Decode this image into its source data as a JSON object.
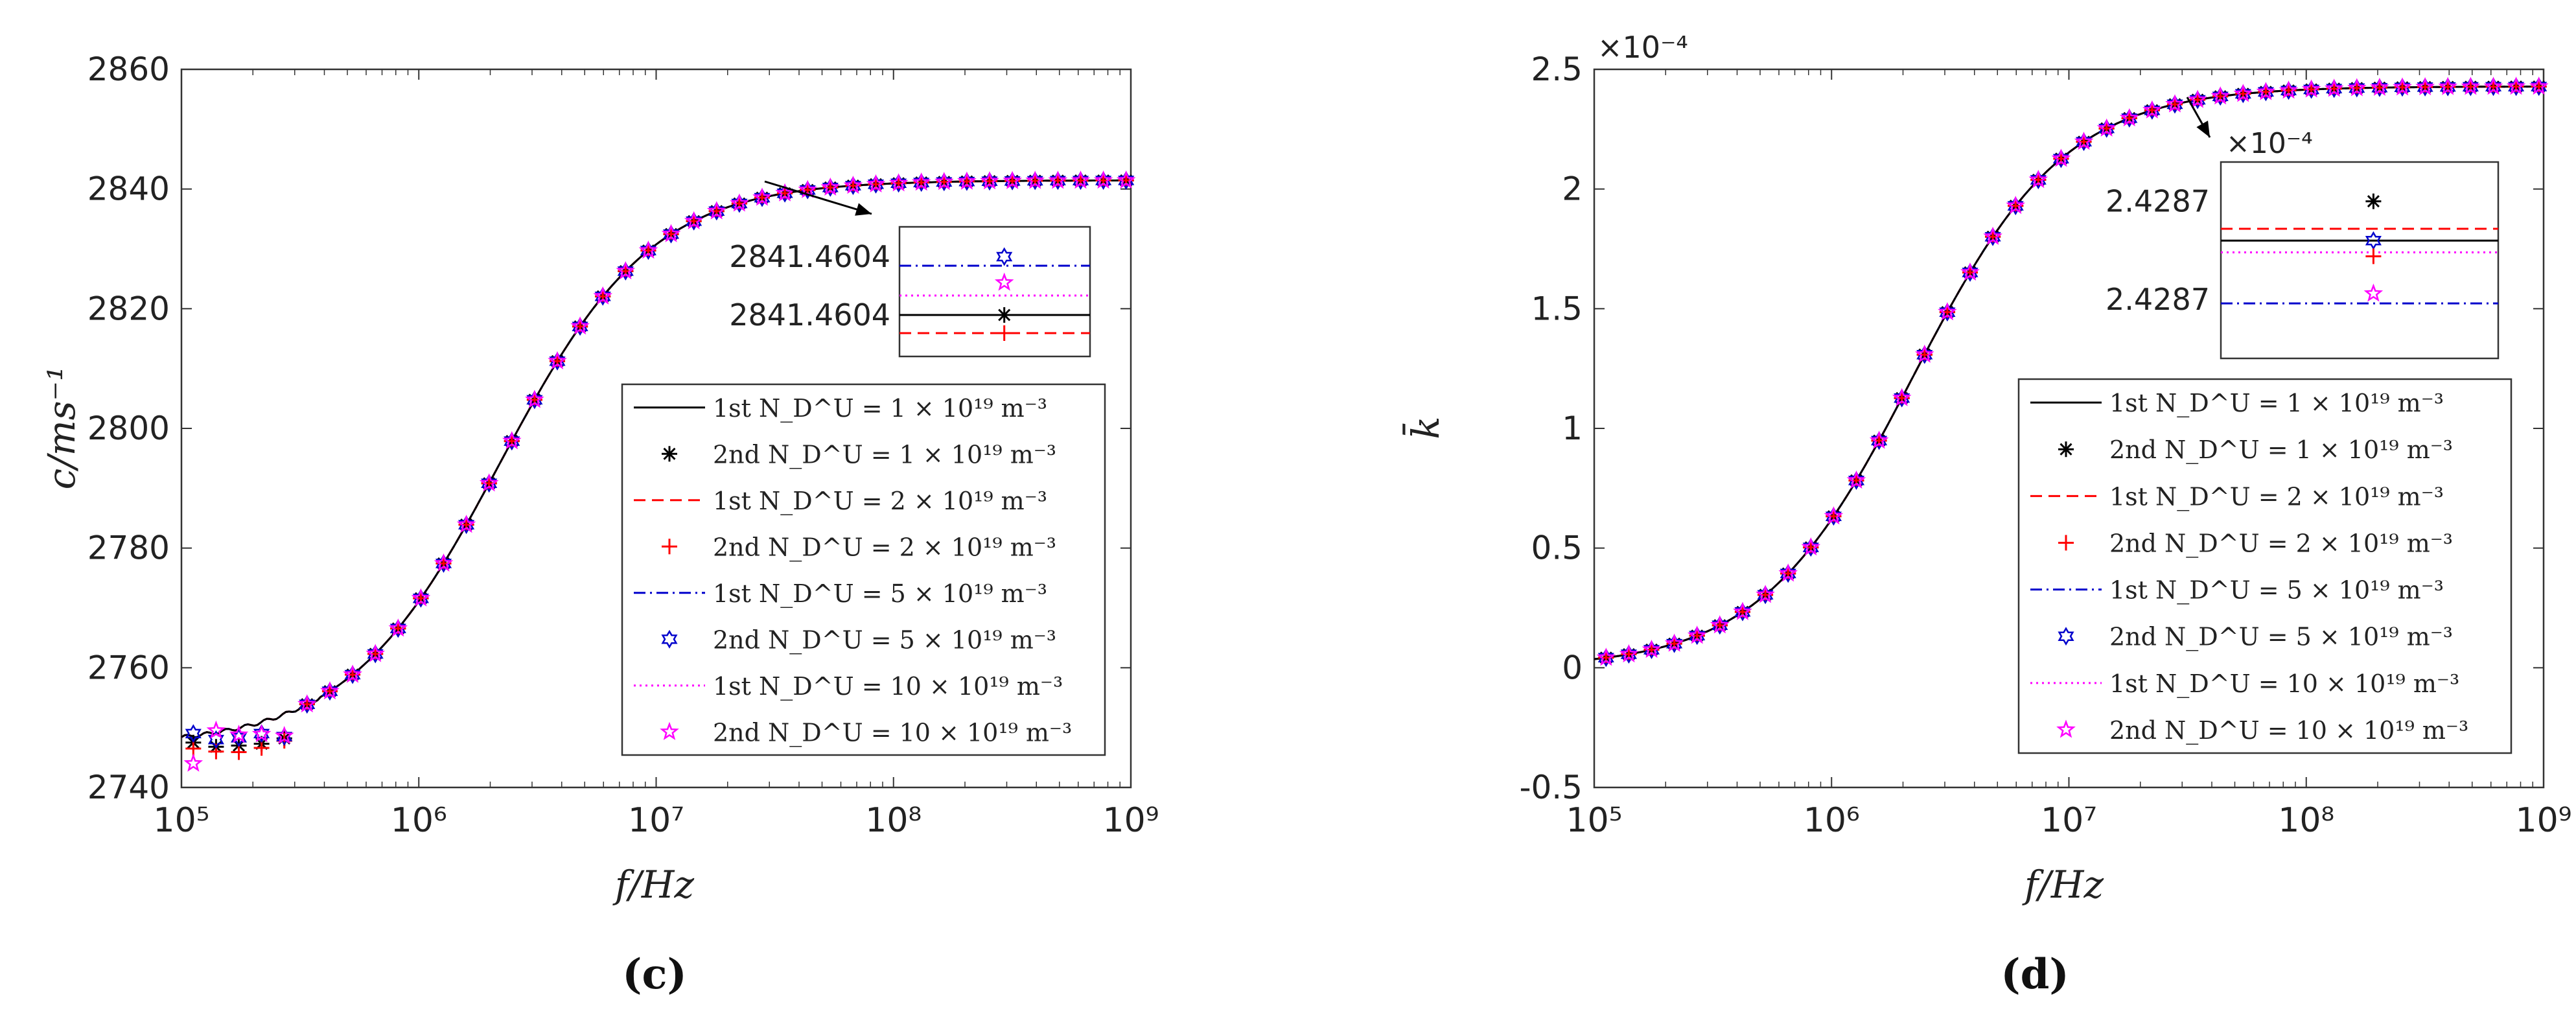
{
  "chart_data": [
    {
      "type": "line",
      "panel_label": "(c)",
      "xlabel": "f/Hz",
      "ylabel": "c/ms⁻¹",
      "xscale": "log",
      "x_ticks": [
        "10⁵",
        "10⁶",
        "10⁷",
        "10⁸",
        "10⁹"
      ],
      "x_tick_values": [
        100000,
        1000000,
        10000000,
        100000000,
        1000000000
      ],
      "xlim": [
        100000,
        1000000000
      ],
      "ylim": [
        2740,
        2860
      ],
      "y_ticks": [
        "2740",
        "2760",
        "2780",
        "2800",
        "2820",
        "2840",
        "2860"
      ],
      "y_tick_values": [
        2740,
        2760,
        2780,
        2800,
        2820,
        2840,
        2860
      ],
      "model": {
        "low": 2747,
        "high": 2841.46,
        "center_hz": 2200000,
        "width_decades": 0.32
      },
      "marker_low_freq_scatter": [
        {
          "series": "1e19",
          "values": [
            2747.5,
            2746.8,
            2747.0,
            2747.3,
            2748.2
          ]
        },
        {
          "series": "2e19",
          "values": [
            2746.5,
            2746.0,
            2745.9,
            2746.6,
            2747.8
          ]
        },
        {
          "series": "5e19",
          "values": [
            2749.0,
            2748.0,
            2748.3,
            2749.0,
            2748.5
          ]
        },
        {
          "series": "10e19",
          "values": [
            2744.0,
            2749.5,
            2748.8,
            2748.9,
            2748.6
          ]
        }
      ],
      "series": [
        {
          "key": "1e19",
          "gen": "1st",
          "name": "1st N_D^U = 1 × 10¹⁹ m⁻³",
          "color": "#000000",
          "style": "solid",
          "marker": "none"
        },
        {
          "key": "1e19",
          "gen": "2nd",
          "name": "2nd N_D^U = 1 × 10¹⁹ m⁻³",
          "color": "#000000",
          "style": "none",
          "marker": "asterisk"
        },
        {
          "key": "2e19",
          "gen": "1st",
          "name": "1st N_D^U = 2 × 10¹⁹ m⁻³",
          "color": "#ff0000",
          "style": "dashed",
          "marker": "none"
        },
        {
          "key": "2e19",
          "gen": "2nd",
          "name": "2nd N_D^U = 2 × 10¹⁹ m⁻³",
          "color": "#ff0000",
          "style": "none",
          "marker": "plus"
        },
        {
          "key": "5e19",
          "gen": "1st",
          "name": "1st N_D^U = 5 × 10¹⁹ m⁻³",
          "color": "#0000cc",
          "style": "dashdot",
          "marker": "none"
        },
        {
          "key": "5e19",
          "gen": "2nd",
          "name": "2nd N_D^U = 5 × 10¹⁹ m⁻³",
          "color": "#0000cc",
          "style": "none",
          "marker": "hexagram"
        },
        {
          "key": "10e19",
          "gen": "1st",
          "name": "1st N_D^U = 10 × 10¹⁹ m⁻³",
          "color": "#ff00ff",
          "style": "dotted",
          "marker": "none"
        },
        {
          "key": "10e19",
          "gen": "2nd",
          "name": "2nd N_D^U = 10 × 10¹⁹ m⁻³",
          "color": "#ff00ff",
          "style": "none",
          "marker": "pentagram"
        }
      ],
      "legend_placement": "bottom-right",
      "inset": {
        "y_tick_labels": [
          "2841.4604",
          "2841.4604"
        ],
        "exponent_label": "",
        "points": [
          {
            "series": "5e19",
            "level": 0.77
          },
          {
            "series": "10e19",
            "level": 0.57
          },
          {
            "series": "1e19",
            "level": 0.32
          },
          {
            "series": "2e19",
            "level": 0.18
          }
        ],
        "lines": [
          {
            "series": "5e19",
            "level": 0.7
          },
          {
            "series": "10e19",
            "level": 0.47
          },
          {
            "series": "1e19",
            "level": 0.32
          },
          {
            "series": "2e19",
            "level": 0.18
          }
        ]
      }
    },
    {
      "type": "line",
      "panel_label": "(d)",
      "xlabel": "f/Hz",
      "ylabel": "k̄",
      "xscale": "log",
      "x_ticks": [
        "10⁵",
        "10⁶",
        "10⁷",
        "10⁸",
        "10⁹"
      ],
      "x_tick_values": [
        100000,
        1000000,
        10000000,
        100000000,
        1000000000
      ],
      "xlim": [
        100000,
        1000000000
      ],
      "ylim": [
        -0.5,
        2.5
      ],
      "y_ticks": [
        "-0.5",
        "0",
        "0.5",
        "1",
        "1.5",
        "2",
        "2.5"
      ],
      "y_tick_values": [
        -0.5,
        0,
        0.5,
        1,
        1.5,
        2,
        2.5
      ],
      "y_exponent": "×10⁻⁴",
      "model": {
        "low": 0.0,
        "high": 2.4287,
        "center_hz": 2200000,
        "width_decades": 0.32
      },
      "series": [
        {
          "key": "1e19",
          "gen": "1st",
          "name": "1st N_D^U = 1 × 10¹⁹ m⁻³",
          "color": "#000000",
          "style": "solid",
          "marker": "none"
        },
        {
          "key": "1e19",
          "gen": "2nd",
          "name": "2nd N_D^U = 1 × 10¹⁹ m⁻³",
          "color": "#000000",
          "style": "none",
          "marker": "asterisk"
        },
        {
          "key": "2e19",
          "gen": "1st",
          "name": "1st N_D^U = 2 × 10¹⁹ m⁻³",
          "color": "#ff0000",
          "style": "dashed",
          "marker": "none"
        },
        {
          "key": "2e19",
          "gen": "2nd",
          "name": "2nd N_D^U = 2 × 10¹⁹ m⁻³",
          "color": "#ff0000",
          "style": "none",
          "marker": "plus"
        },
        {
          "key": "5e19",
          "gen": "1st",
          "name": "1st N_D^U = 5 × 10¹⁹ m⁻³",
          "color": "#0000cc",
          "style": "dashdot",
          "marker": "none"
        },
        {
          "key": "5e19",
          "gen": "2nd",
          "name": "2nd N_D^U = 5 × 10¹⁹ m⁻³",
          "color": "#0000cc",
          "style": "none",
          "marker": "hexagram"
        },
        {
          "key": "10e19",
          "gen": "1st",
          "name": "1st N_D^U = 10 × 10¹⁹ m⁻³",
          "color": "#ff00ff",
          "style": "dotted",
          "marker": "none"
        },
        {
          "key": "10e19",
          "gen": "2nd",
          "name": "2nd N_D^U = 10 × 10¹⁹ m⁻³",
          "color": "#ff00ff",
          "style": "none",
          "marker": "pentagram"
        }
      ],
      "legend_placement": "bottom-right",
      "inset": {
        "y_tick_labels": [
          "2.4287",
          "2.4287"
        ],
        "exponent_label": "×10⁻⁴",
        "points": [
          {
            "series": "1e19",
            "level": 0.8
          },
          {
            "series": "5e19",
            "level": 0.6
          },
          {
            "series": "2e19",
            "level": 0.52
          },
          {
            "series": "10e19",
            "level": 0.33
          }
        ],
        "lines": [
          {
            "series": "2e19",
            "level": 0.66
          },
          {
            "series": "1e19",
            "level": 0.6
          },
          {
            "series": "10e19",
            "level": 0.54
          },
          {
            "series": "5e19",
            "level": 0.28
          }
        ]
      }
    }
  ]
}
